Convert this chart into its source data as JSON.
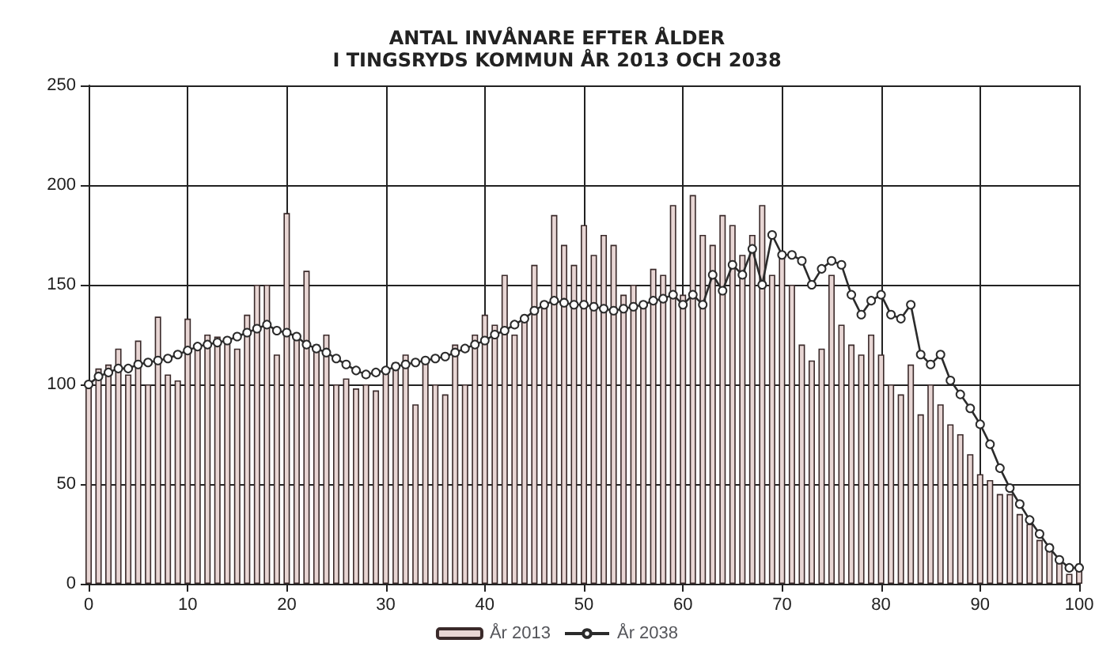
{
  "chart_data": {
    "type": "bar",
    "title": "ANTAL INVÅNARE EFTER ÅLDER\nI TINGSRYDS KOMMUN ÅR 2013 OCH 2038",
    "x": [
      0,
      1,
      2,
      3,
      4,
      5,
      6,
      7,
      8,
      9,
      10,
      11,
      12,
      13,
      14,
      15,
      16,
      17,
      18,
      19,
      20,
      21,
      22,
      23,
      24,
      25,
      26,
      27,
      28,
      29,
      30,
      31,
      32,
      33,
      34,
      35,
      36,
      37,
      38,
      39,
      40,
      41,
      42,
      43,
      44,
      45,
      46,
      47,
      48,
      49,
      50,
      51,
      52,
      53,
      54,
      55,
      56,
      57,
      58,
      59,
      60,
      61,
      62,
      63,
      64,
      65,
      66,
      67,
      68,
      69,
      70,
      71,
      72,
      73,
      74,
      75,
      76,
      77,
      78,
      79,
      80,
      81,
      82,
      83,
      84,
      85,
      86,
      87,
      88,
      89,
      90,
      91,
      92,
      93,
      94,
      95,
      96,
      97,
      98,
      99,
      100
    ],
    "series": [
      {
        "name": "År 2013",
        "color": "#e8d6d4",
        "values": [
          100,
          108,
          110,
          118,
          105,
          122,
          100,
          134,
          105,
          102,
          133,
          120,
          125,
          124,
          122,
          118,
          135,
          150,
          150,
          115,
          186,
          123,
          157,
          120,
          125,
          100,
          103,
          98,
          100,
          97,
          108,
          111,
          115,
          90,
          113,
          100,
          95,
          120,
          100,
          125,
          135,
          130,
          155,
          125,
          135,
          160,
          140,
          185,
          170,
          160,
          180,
          165,
          175,
          170,
          145,
          150,
          140,
          158,
          155,
          190,
          145,
          195,
          175,
          170,
          185,
          180,
          165,
          175,
          190,
          155,
          165,
          150,
          120,
          112,
          118,
          155,
          130,
          120,
          115,
          125,
          115,
          100,
          95,
          110,
          85,
          100,
          90,
          80,
          75,
          65,
          55,
          52,
          45,
          45,
          35,
          30,
          22,
          20,
          12,
          5,
          10
        ]
      },
      {
        "name": "År 2038",
        "type": "line",
        "color": "#2b2b2b",
        "values": [
          100,
          104,
          106,
          108,
          108,
          110,
          111,
          112,
          113,
          115,
          117,
          119,
          120,
          121,
          122,
          124,
          126,
          128,
          130,
          127,
          126,
          124,
          120,
          118,
          116,
          113,
          110,
          107,
          105,
          106,
          107,
          109,
          110,
          111,
          112,
          113,
          114,
          116,
          118,
          120,
          122,
          125,
          127,
          130,
          133,
          137,
          140,
          142,
          141,
          140,
          140,
          139,
          138,
          137,
          138,
          139,
          140,
          142,
          143,
          145,
          140,
          145,
          140,
          155,
          147,
          160,
          155,
          168,
          150,
          175,
          165,
          165,
          162,
          150,
          158,
          162,
          160,
          145,
          135,
          142,
          145,
          135,
          133,
          140,
          115,
          110,
          115,
          102,
          95,
          88,
          80,
          70,
          58,
          48,
          40,
          32,
          25,
          18,
          12,
          8,
          8
        ]
      }
    ],
    "xlim": [
      0,
      100
    ],
    "xticks": [
      0,
      10,
      20,
      30,
      40,
      50,
      60,
      70,
      80,
      90,
      100
    ],
    "ylim": [
      0,
      250
    ],
    "yticks": [
      0,
      50,
      100,
      150,
      200,
      250
    ],
    "grid": true,
    "legend": "bottom",
    "marker": "circle",
    "line_style": "solid"
  }
}
